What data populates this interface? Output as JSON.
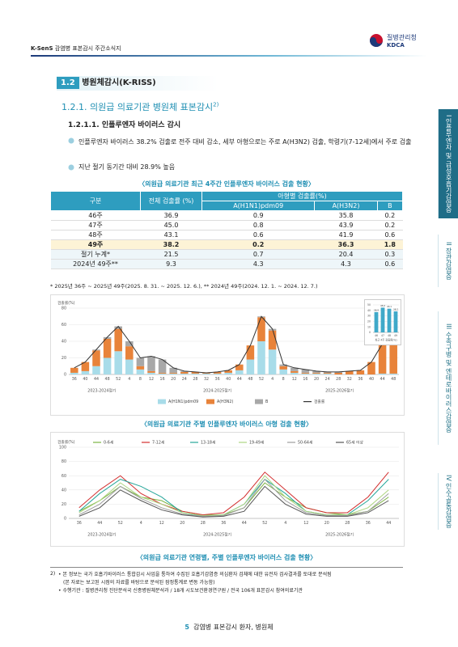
{
  "header": {
    "brand": "K-SenS",
    "subtitle": "감염병 표본감시 주간소식지",
    "logo_name": "질병관리청",
    "logo_abbr": "KDCA"
  },
  "nav_tabs": [
    {
      "num": "I",
      "label": "인플루엔자 및 급성호흡기감염증"
    },
    {
      "num": "II",
      "label": "장관감염증"
    },
    {
      "num": "III",
      "label": "수족구병 및 엔테로바이러스감염증"
    },
    {
      "num": "IV",
      "label": "인수공통감염증"
    }
  ],
  "section": {
    "num": "1.2",
    "title": "병원체감시(K-RISS)"
  },
  "subsection": {
    "text": "1.2.1. 의원급 의료기관 병원체 표본감시",
    "note": "2)"
  },
  "subsubsection": "1.2.1.1. 인플루엔자 바이러스 감시",
  "bullets": [
    "인플루엔자 바이러스 38.2% 검출로 전주 대비 감소, 세부 아형으로는 주로 A(H3N2) 검출, 학령기(7-12세)에서 주로 검출",
    "지난 절기 동기간 대비 28.9% 높음"
  ],
  "table": {
    "caption": "〈의원급 의료기관 최근 4주간 인플루엔자 바이러스 검출 현황〉",
    "head": [
      "구분",
      "전체 검출률 (%)",
      "아형별 검출률(%)"
    ],
    "subhead": [
      "A(H1N1)pdm09",
      "A(H3N2)",
      "B"
    ],
    "rows": [
      [
        "46주",
        "36.9",
        "0.9",
        "35.8",
        "0.2"
      ],
      [
        "47주",
        "45.0",
        "0.8",
        "43.9",
        "0.2"
      ],
      [
        "48주",
        "43.1",
        "0.6",
        "41.9",
        "0.6"
      ],
      [
        "49주",
        "38.2",
        "0.2",
        "36.3",
        "1.8"
      ],
      [
        "절기 누계*",
        "21.5",
        "0.7",
        "20.4",
        "0.3"
      ],
      [
        "2024년 49주**",
        "9.3",
        "4.3",
        "4.3",
        "0.6"
      ]
    ],
    "note": "* 2025년 36주 ~ 2025년 49주(2025. 8. 31. ~ 2025. 12. 6.), ** 2024년 49주(2024. 12. 1. ~ 2024. 12. 7.)"
  },
  "chart_data": [
    {
      "type": "bar",
      "stacked": true,
      "ylabel": "검출률(%)",
      "categories": [
        "36",
        "40",
        "44",
        "48",
        "52",
        "4",
        "8",
        "12",
        "16",
        "20",
        "24",
        "28",
        "32",
        "36",
        "40",
        "44",
        "48",
        "52",
        "4",
        "8",
        "12",
        "16",
        "20",
        "24",
        "28",
        "32",
        "36",
        "40",
        "44",
        "48"
      ],
      "periods": [
        "2023-2024절기",
        "2024-2025절기",
        "2025-2026절기"
      ],
      "ylim": [
        0,
        80
      ],
      "yticks": [
        0,
        20,
        40,
        60,
        80
      ],
      "grid": true,
      "series": [
        {
          "name": "A(H1N1)pdm09",
          "color": "#a8dce9",
          "values": [
            2,
            4,
            10,
            20,
            28,
            18,
            6,
            2,
            1,
            1,
            1,
            1,
            1,
            1,
            2,
            5,
            18,
            40,
            30,
            6,
            2,
            1,
            1,
            1,
            0,
            0,
            0,
            0,
            1,
            1
          ]
        },
        {
          "name": "A(H3N2)",
          "color": "#e8833a",
          "values": [
            6,
            11,
            19,
            23,
            27,
            16,
            4,
            2,
            1,
            1,
            2,
            2,
            1,
            2,
            3,
            7,
            17,
            29,
            23,
            4,
            2,
            1,
            1,
            1,
            2,
            4,
            5,
            15,
            36,
            42
          ]
        },
        {
          "name": "B",
          "color": "#a8a8a8",
          "values": [
            0,
            0,
            1,
            2,
            3,
            6,
            10,
            18,
            16,
            6,
            1,
            0,
            0,
            0,
            0,
            0,
            0,
            1,
            2,
            2,
            4,
            4,
            2,
            1,
            1,
            0,
            0,
            0,
            0,
            0
          ]
        },
        {
          "name": "검출률",
          "type": "line",
          "color": "#333333",
          "values": [
            8,
            15,
            30,
            45,
            58,
            40,
            20,
            22,
            18,
            8,
            4,
            3,
            2,
            3,
            5,
            12,
            35,
            70,
            55,
            12,
            8,
            6,
            4,
            3,
            3,
            4,
            5,
            15,
            37,
            43
          ]
        }
      ]
    },
    {
      "type": "bar",
      "xlabel": "최근 4주 검출률(%)",
      "categories": [
        "46",
        "47",
        "48",
        "49"
      ],
      "values": [
        36.9,
        45.0,
        43.1,
        38.2
      ],
      "value_labels": [
        "36.9",
        "45.0",
        "43.1",
        "38.2"
      ],
      "color": "#3fa9c9",
      "ylim": [
        0,
        50
      ],
      "yticks": [
        0,
        10,
        20,
        30,
        40,
        50
      ],
      "grid": true
    },
    {
      "type": "line",
      "ylabel": "검출률(%)",
      "categories": [
        "36",
        "44",
        "52",
        "4",
        "12",
        "20",
        "28",
        "36",
        "44",
        "52",
        "4",
        "12",
        "20",
        "28",
        "36",
        "44"
      ],
      "periods": [
        "2023-2024절기",
        "2024-2025절기",
        "2025-2026절기"
      ],
      "ylim": [
        0,
        100
      ],
      "yticks": [
        0,
        20,
        40,
        60,
        80,
        100
      ],
      "grid": true,
      "series": [
        {
          "name": "0-6세",
          "color": "#7cb342",
          "values": [
            10,
            25,
            45,
            30,
            25,
            10,
            5,
            5,
            15,
            50,
            30,
            15,
            8,
            5,
            10,
            30
          ]
        },
        {
          "name": "7-12세",
          "color": "#d32f2f",
          "values": [
            15,
            40,
            60,
            35,
            20,
            10,
            5,
            8,
            30,
            65,
            40,
            15,
            8,
            8,
            30,
            65
          ]
        },
        {
          "name": "13-18세",
          "color": "#26a69a",
          "values": [
            10,
            35,
            55,
            45,
            30,
            8,
            3,
            5,
            20,
            55,
            35,
            10,
            5,
            5,
            25,
            55
          ]
        },
        {
          "name": "19-49세",
          "color": "#aed581",
          "values": [
            8,
            25,
            50,
            30,
            20,
            8,
            4,
            5,
            20,
            60,
            30,
            10,
            5,
            5,
            15,
            40
          ]
        },
        {
          "name": "50-64세",
          "color": "#9e9e9e",
          "values": [
            5,
            20,
            45,
            28,
            15,
            6,
            3,
            4,
            15,
            55,
            25,
            8,
            4,
            4,
            10,
            35
          ]
        },
        {
          "name": "65세 이상",
          "color": "#555555",
          "values": [
            3,
            15,
            40,
            25,
            12,
            5,
            2,
            3,
            10,
            45,
            20,
            6,
            3,
            3,
            8,
            25
          ]
        }
      ]
    }
  ],
  "captions": [
    "〈의원급 의료기관 주별 인플루엔자 바이러스 아형 검출 현황〉",
    "〈의원급 의료기관 연령별, 주별 인플루엔자 바이러스 검출 현황〉"
  ],
  "footnotes": {
    "marker": "2)",
    "lines": [
      "• 본 정보는 국가 호흡기바이러스 통합감시 사업을 통하여 수집된 호흡기감염증 의심환자 검체에 대한 유전자 검사결과를 토대로 분석됨",
      "(본 자료는 보고된 시점의 자료를 바탕으로 분석된 잠정통계로 변동 가능함)",
      "• 수행기관 : 질병관리청 진단분석국 신종병원체분석과 / 18개 시도보건환경연구원 / 전국 106개 표본감시 참여의료기관"
    ]
  },
  "footer": {
    "page": "5",
    "title": "감염병 표본감시 환자, 병원체"
  }
}
